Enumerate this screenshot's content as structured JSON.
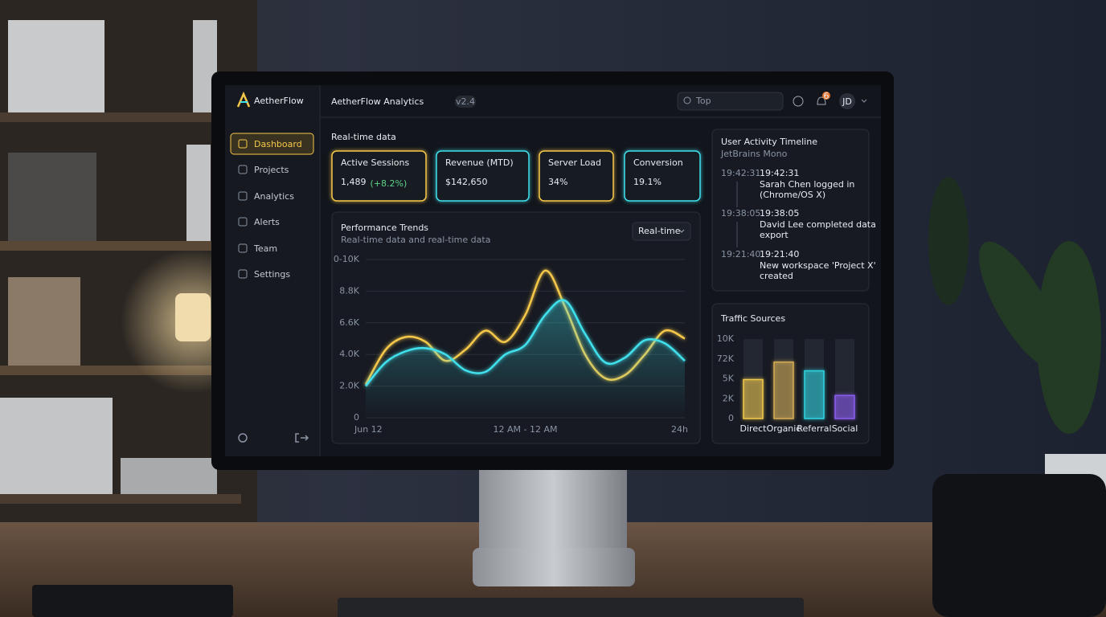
{
  "brand": "AetherFlow",
  "nav": [
    "Dashboard",
    "Projects",
    "Analytics",
    "Alerts",
    "Team",
    "Settings"
  ],
  "header": {
    "title": "AetherFlow Analytics",
    "version": "v2.4",
    "search": "Top",
    "notifications": 6,
    "avatar": "JD"
  },
  "section_title": "Real-time data",
  "kpis": [
    {
      "label": "Active Sessions",
      "value": "1,489",
      "change": "(+8.2%)"
    },
    {
      "label": "Revenue (MTD)",
      "value": "$142,650"
    },
    {
      "label": "Server Load",
      "value": "34%"
    },
    {
      "label": "Conversion",
      "value": "19.1%"
    }
  ],
  "chart_data": [
    {
      "type": "line",
      "title": "Performance Trends",
      "subtitle": "Real-time data and real-time data",
      "control": "Real-time",
      "categories": [
        "Jun 12",
        null,
        null,
        null,
        null,
        null,
        null,
        null,
        "12 AM - 12 AM",
        null,
        null,
        null,
        null,
        null,
        null,
        null,
        "24h"
      ],
      "series": [
        {
          "color": "#f5c84a",
          "values": [
            2100,
            4300,
            5100,
            4800,
            3600,
            4300,
            5500,
            4800,
            6500,
            9300,
            7000,
            4000,
            2500,
            2700,
            4000,
            5500,
            5000
          ]
        },
        {
          "color": "#3fe0ec",
          "values": [
            2000,
            3500,
            4200,
            4400,
            4000,
            3000,
            2900,
            4000,
            4600,
            6500,
            7400,
            5300,
            3500,
            3800,
            4900,
            4700,
            3600
          ]
        }
      ],
      "ylim": [
        0,
        10000
      ],
      "y_labels": [
        "0",
        "2.0K",
        "4.0K",
        "6.6K",
        "8.8K",
        "0-10K"
      ],
      "grid": true
    },
    {
      "type": "bar",
      "title": "Traffic Sources",
      "categories": [
        "Direct",
        "Organic",
        "Referral",
        "Social"
      ],
      "values": [
        4900,
        7100,
        6000,
        2900
      ],
      "colors": [
        "#f2c94c",
        "#d6ae55",
        "#2fd4e0",
        "#8b5cf0"
      ],
      "ylim": [
        0,
        10000
      ],
      "y_labels": [
        "0",
        "2K",
        "5K",
        "72K",
        "10K"
      ]
    }
  ],
  "timeline": {
    "title": "User Activity Timeline",
    "subtitle": "JetBrains Mono",
    "events": [
      {
        "time": "19:42:31",
        "heading": "19:42:31",
        "lines": [
          "Sarah Chen logged in",
          "(Chrome/OS X)"
        ]
      },
      {
        "time": "19:38:05",
        "heading": "19:38:05",
        "lines": [
          "David Lee completed data",
          "export"
        ]
      },
      {
        "time": "19:21:40",
        "heading": "19:21:40",
        "lines": [
          "New workspace 'Project X'",
          "created"
        ]
      }
    ]
  }
}
